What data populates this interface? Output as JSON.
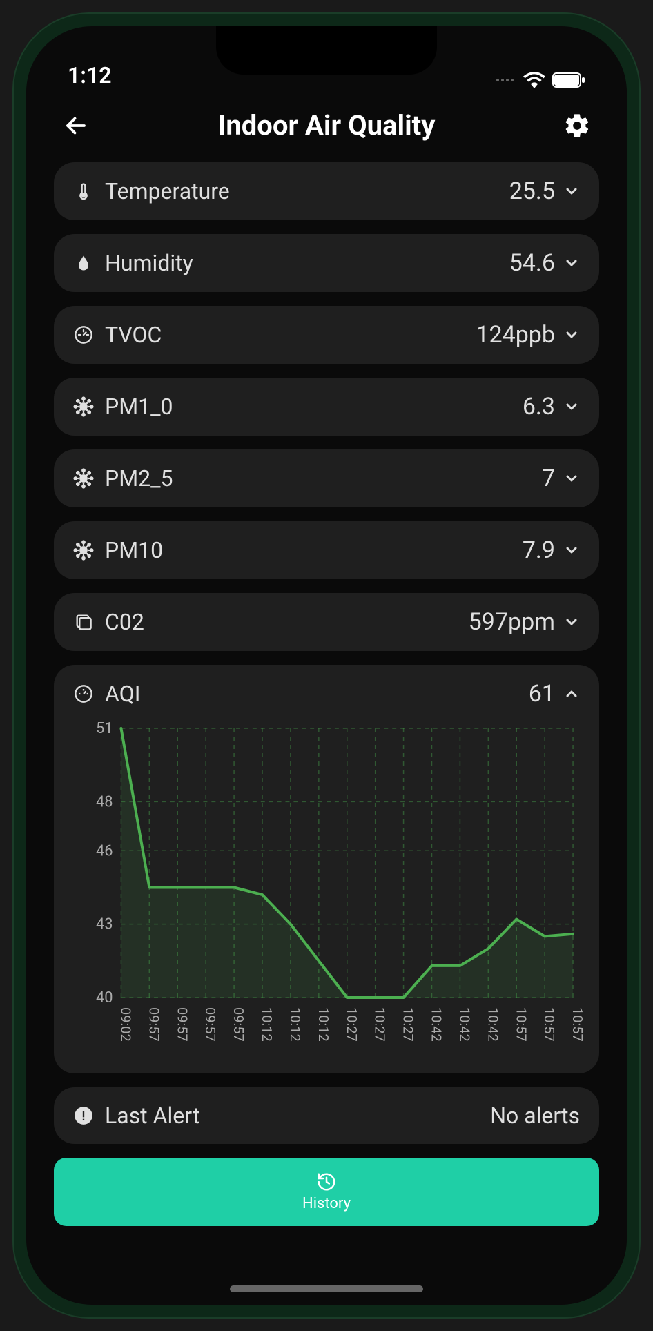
{
  "status": {
    "time": "1:12"
  },
  "header": {
    "title": "Indoor Air Quality"
  },
  "metrics": [
    {
      "icon": "thermometer",
      "label": "Temperature",
      "value": "25.5",
      "expanded": false
    },
    {
      "icon": "droplet",
      "label": "Humidity",
      "value": "54.6",
      "expanded": false
    },
    {
      "icon": "gauge",
      "label": "TVOC",
      "value": "124ppb",
      "expanded": false
    },
    {
      "icon": "virus",
      "label": "PM1_0",
      "value": "6.3",
      "expanded": false
    },
    {
      "icon": "virus",
      "label": "PM2_5",
      "value": "7",
      "expanded": false
    },
    {
      "icon": "virus",
      "label": "PM10",
      "value": "7.9",
      "expanded": false
    },
    {
      "icon": "layers",
      "label": "C02",
      "value": "597ppm",
      "expanded": false
    }
  ],
  "aqi": {
    "icon": "gauge",
    "label": "AQI",
    "value": "61",
    "expanded": true,
    "chart": {
      "type": "line",
      "line_color": "#4caf50",
      "line_width": 4,
      "fill_color": "rgba(76,175,80,0.12)",
      "grid_color": "#4caf50",
      "grid_opacity": 0.4,
      "grid_dash": "6,6",
      "background_color": "#1f1f1f",
      "ylim": [
        40,
        51
      ],
      "y_ticks": [
        40,
        43,
        46,
        48,
        51
      ],
      "x_labels": [
        "09:02",
        "09:57",
        "09:57",
        "09:57",
        "09:57",
        "10:12",
        "10:12",
        "10:12",
        "10:27",
        "10:27",
        "10:27",
        "10:42",
        "10:42",
        "10:42",
        "10:57",
        "10:57",
        "10:57"
      ],
      "values": [
        51,
        44.5,
        44.5,
        44.5,
        44.5,
        44.2,
        43,
        41.5,
        40,
        40,
        40,
        41.3,
        41.3,
        42,
        43.2,
        42.5,
        42.6
      ],
      "label_fontsize": 22,
      "text_color": "#aaaaaa"
    }
  },
  "alert": {
    "label": "Last Alert",
    "value": "No alerts"
  },
  "history_button": {
    "label": "History"
  },
  "colors": {
    "bg": "#0a0a0a",
    "card": "#1f1f1f",
    "text": "#e0e0e0",
    "accent": "#1fcfa6",
    "chart_line": "#4caf50"
  }
}
